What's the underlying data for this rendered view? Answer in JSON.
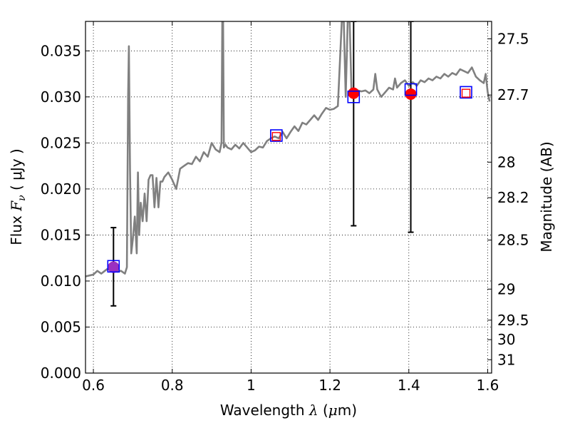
{
  "chart_data": {
    "type": "line",
    "xlabel": {
      "prefix": "Wavelength ",
      "symbol": "λ",
      "unit_open": " (",
      "unit_mu": "μ",
      "unit_close": "m)"
    },
    "ylabel": {
      "prefix": "Flux  ",
      "symbol": "F",
      "subscript": "ν",
      "unit": "  ( μJy )"
    },
    "ylabel_right": "Magnitude (AB)",
    "xlim": [
      0.58,
      1.61
    ],
    "ylim": [
      0.0,
      0.0382
    ],
    "grid": true,
    "x_ticks": [
      {
        "value": 0.6,
        "label": "0.6"
      },
      {
        "value": 0.8,
        "label": "0.8"
      },
      {
        "value": 1.0,
        "label": "1"
      },
      {
        "value": 1.2,
        "label": "1.2"
      },
      {
        "value": 1.4,
        "label": "1.4"
      },
      {
        "value": 1.6,
        "label": "1.6"
      }
    ],
    "y_ticks": [
      {
        "value": 0.0,
        "label": "0.000"
      },
      {
        "value": 0.005,
        "label": "0.005"
      },
      {
        "value": 0.01,
        "label": "0.010"
      },
      {
        "value": 0.015,
        "label": "0.015"
      },
      {
        "value": 0.02,
        "label": "0.020"
      },
      {
        "value": 0.025,
        "label": "0.025"
      },
      {
        "value": 0.03,
        "label": "0.030"
      },
      {
        "value": 0.035,
        "label": "0.035"
      }
    ],
    "magnitude_ticks": [
      {
        "label": "27.5",
        "flux": 0.03631
      },
      {
        "label": "27.7",
        "flux": 0.0302
      },
      {
        "label": "28",
        "flux": 0.02291
      },
      {
        "label": "28.2",
        "flux": 0.01905
      },
      {
        "label": "28.5",
        "flux": 0.01445
      },
      {
        "label": "29",
        "flux": 0.00912
      },
      {
        "label": "29.5",
        "flux": 0.00575
      },
      {
        "label": "30",
        "flux": 0.00363
      },
      {
        "label": "31",
        "flux": 0.00145
      }
    ],
    "series": [
      {
        "kind": "model-spectrum",
        "color": "#808080",
        "x": [
          0.58,
          0.6,
          0.61,
          0.62,
          0.635,
          0.65,
          0.66,
          0.67,
          0.68,
          0.685,
          0.688,
          0.69,
          0.693,
          0.696,
          0.7,
          0.705,
          0.71,
          0.713,
          0.716,
          0.72,
          0.725,
          0.73,
          0.735,
          0.74,
          0.745,
          0.75,
          0.755,
          0.76,
          0.765,
          0.77,
          0.775,
          0.78,
          0.79,
          0.8,
          0.81,
          0.82,
          0.83,
          0.84,
          0.85,
          0.86,
          0.87,
          0.88,
          0.89,
          0.9,
          0.91,
          0.92,
          0.925,
          0.927,
          0.929,
          0.931,
          0.935,
          0.94,
          0.95,
          0.96,
          0.97,
          0.98,
          0.99,
          1.0,
          1.01,
          1.02,
          1.03,
          1.04,
          1.05,
          1.06,
          1.07,
          1.08,
          1.09,
          1.1,
          1.11,
          1.12,
          1.13,
          1.14,
          1.15,
          1.16,
          1.17,
          1.18,
          1.19,
          1.2,
          1.21,
          1.22,
          1.23,
          1.235,
          1.24,
          1.245,
          1.25,
          1.255,
          1.26,
          1.27,
          1.28,
          1.29,
          1.3,
          1.31,
          1.315,
          1.32,
          1.33,
          1.34,
          1.35,
          1.36,
          1.365,
          1.37,
          1.38,
          1.39,
          1.4,
          1.41,
          1.42,
          1.43,
          1.44,
          1.45,
          1.46,
          1.47,
          1.48,
          1.49,
          1.5,
          1.51,
          1.52,
          1.53,
          1.54,
          1.55,
          1.56,
          1.57,
          1.58,
          1.59,
          1.595,
          1.6,
          1.605
        ],
        "y": [
          0.0105,
          0.0107,
          0.0111,
          0.0108,
          0.0113,
          0.0112,
          0.011,
          0.0111,
          0.0108,
          0.0115,
          0.03,
          0.0355,
          0.022,
          0.013,
          0.0145,
          0.017,
          0.013,
          0.0218,
          0.015,
          0.0185,
          0.0165,
          0.0195,
          0.0165,
          0.021,
          0.0215,
          0.0215,
          0.018,
          0.0212,
          0.018,
          0.0208,
          0.0208,
          0.0213,
          0.0218,
          0.021,
          0.02,
          0.0222,
          0.0225,
          0.0228,
          0.0227,
          0.0235,
          0.023,
          0.024,
          0.0235,
          0.025,
          0.0243,
          0.024,
          0.025,
          0.0382,
          0.0382,
          0.0245,
          0.0248,
          0.0245,
          0.0243,
          0.0248,
          0.0244,
          0.025,
          0.0245,
          0.024,
          0.0242,
          0.0246,
          0.0245,
          0.0252,
          0.0255,
          0.0257,
          0.0255,
          0.0262,
          0.0255,
          0.0262,
          0.0268,
          0.0263,
          0.0272,
          0.027,
          0.0275,
          0.028,
          0.0275,
          0.0282,
          0.0288,
          0.0286,
          0.0287,
          0.029,
          0.0382,
          0.0382,
          0.03,
          0.0382,
          0.0382,
          0.03,
          0.0305,
          0.0307,
          0.0306,
          0.0307,
          0.0304,
          0.0308,
          0.0325,
          0.0308,
          0.03,
          0.0305,
          0.031,
          0.0308,
          0.032,
          0.031,
          0.0315,
          0.0318,
          0.0312,
          0.0316,
          0.0312,
          0.0318,
          0.0316,
          0.032,
          0.0318,
          0.0322,
          0.032,
          0.0325,
          0.0322,
          0.0326,
          0.0324,
          0.033,
          0.0328,
          0.0326,
          0.0332,
          0.0322,
          0.0318,
          0.0315,
          0.0325,
          0.0305,
          0.0295
        ]
      },
      {
        "kind": "observed",
        "marker": "circle",
        "color": "#ff0000",
        "x": [
          0.651,
          1.26,
          1.405
        ],
        "y": [
          0.0115,
          0.0304,
          0.0303
        ],
        "yerr_low": [
          0.0073,
          0.016,
          0.0153
        ],
        "yerr_high": [
          0.0158,
          0.0382,
          0.0382
        ],
        "error_color": "#000000"
      },
      {
        "kind": "observed-highlight",
        "marker": "circle",
        "color": "#9b30c0",
        "x": [
          0.651
        ],
        "y": [
          0.0115
        ]
      },
      {
        "kind": "model-photometry",
        "marker": "square",
        "color": "#0000ff",
        "x": [
          0.651,
          1.064,
          1.26,
          1.405,
          1.545
        ],
        "y": [
          0.0116,
          0.0258,
          0.03,
          0.0308,
          0.0305
        ]
      },
      {
        "kind": "model-photometry-inner",
        "marker": "square",
        "color": "#ff0000",
        "x": [
          1.064,
          1.545
        ],
        "y": [
          0.0257,
          0.0304
        ]
      }
    ]
  }
}
